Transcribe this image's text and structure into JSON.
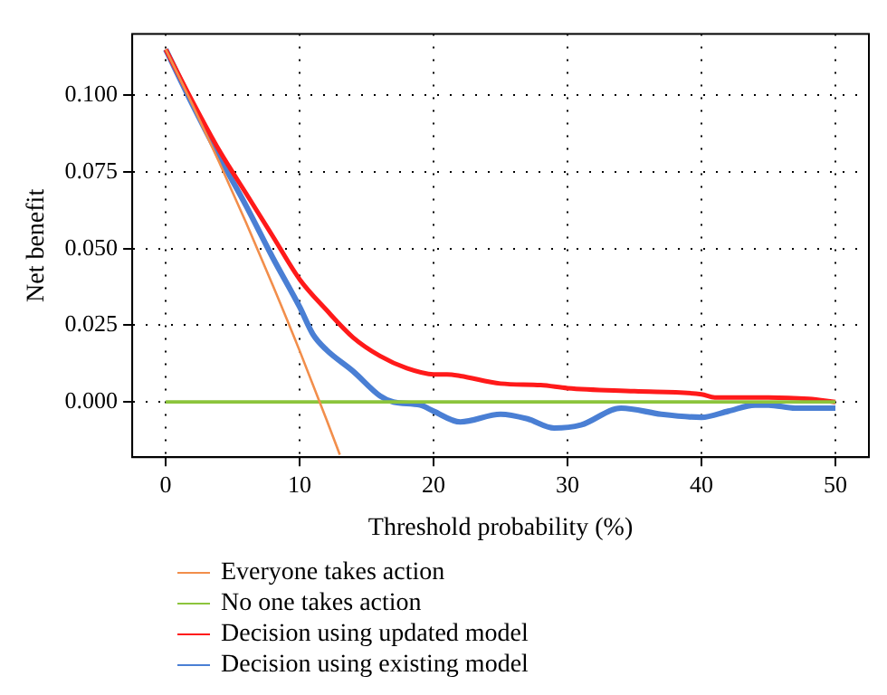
{
  "chart_data": {
    "type": "line",
    "xlabel": "Threshold probability (%)",
    "ylabel": "Net benefit",
    "xlim": [
      -2.5,
      52.5
    ],
    "xticks": [
      0,
      10,
      20,
      30,
      40,
      50
    ],
    "ylim": [
      -0.018,
      0.12
    ],
    "yticks": [
      {
        "value": 0,
        "label": "0.000"
      },
      {
        "value": 0.025,
        "label": "0.025"
      },
      {
        "value": 0.05,
        "label": "0.050"
      },
      {
        "value": 0.075,
        "label": "0.075"
      },
      {
        "value": 0.1,
        "label": "0.100"
      }
    ],
    "grid": true,
    "legend": "bottom",
    "marker": "none",
    "line_style": "solid",
    "series": [
      {
        "name": "Everyone takes action",
        "color": "#f28e4b",
        "x": [
          0,
          2,
          4,
          6,
          8,
          10,
          12,
          13
        ],
        "values": [
          0.115,
          0.0969,
          0.0781,
          0.0585,
          0.038,
          0.0167,
          -0.0057,
          -0.0172
        ]
      },
      {
        "name": "No one takes action",
        "color": "#8cc43c",
        "x": [
          0,
          50
        ],
        "values": [
          0,
          0
        ]
      },
      {
        "name": "Decision using updated model",
        "color": "#ff1a1a",
        "x": [
          0,
          2,
          4,
          6,
          8,
          10,
          12,
          14,
          16,
          18,
          20,
          21,
          22,
          25,
          28,
          30,
          35,
          40,
          41,
          45,
          48,
          50
        ],
        "values": [
          0.115,
          0.098,
          0.082,
          0.068,
          0.054,
          0.04,
          0.03,
          0.021,
          0.015,
          0.011,
          0.009,
          0.009,
          0.0085,
          0.006,
          0.0055,
          0.0045,
          0.0035,
          0.0025,
          0.0015,
          0.0015,
          0.001,
          0
        ]
      },
      {
        "name": "Decision using existing model",
        "color": "#4a7fd4",
        "x": [
          0,
          2,
          4,
          6,
          8,
          10,
          11,
          12,
          14,
          16,
          17,
          19,
          20,
          22,
          25,
          27,
          29,
          31,
          34,
          37,
          40,
          42,
          44,
          45,
          47,
          50
        ],
        "values": [
          0.115,
          0.097,
          0.08,
          0.064,
          0.047,
          0.031,
          0.022,
          0.017,
          0.01,
          0.002,
          0,
          -0.001,
          -0.003,
          -0.0065,
          -0.004,
          -0.0055,
          -0.0085,
          -0.0075,
          -0.002,
          -0.004,
          -0.005,
          -0.003,
          -0.001,
          -0.001,
          -0.002,
          -0.002
        ]
      }
    ]
  }
}
